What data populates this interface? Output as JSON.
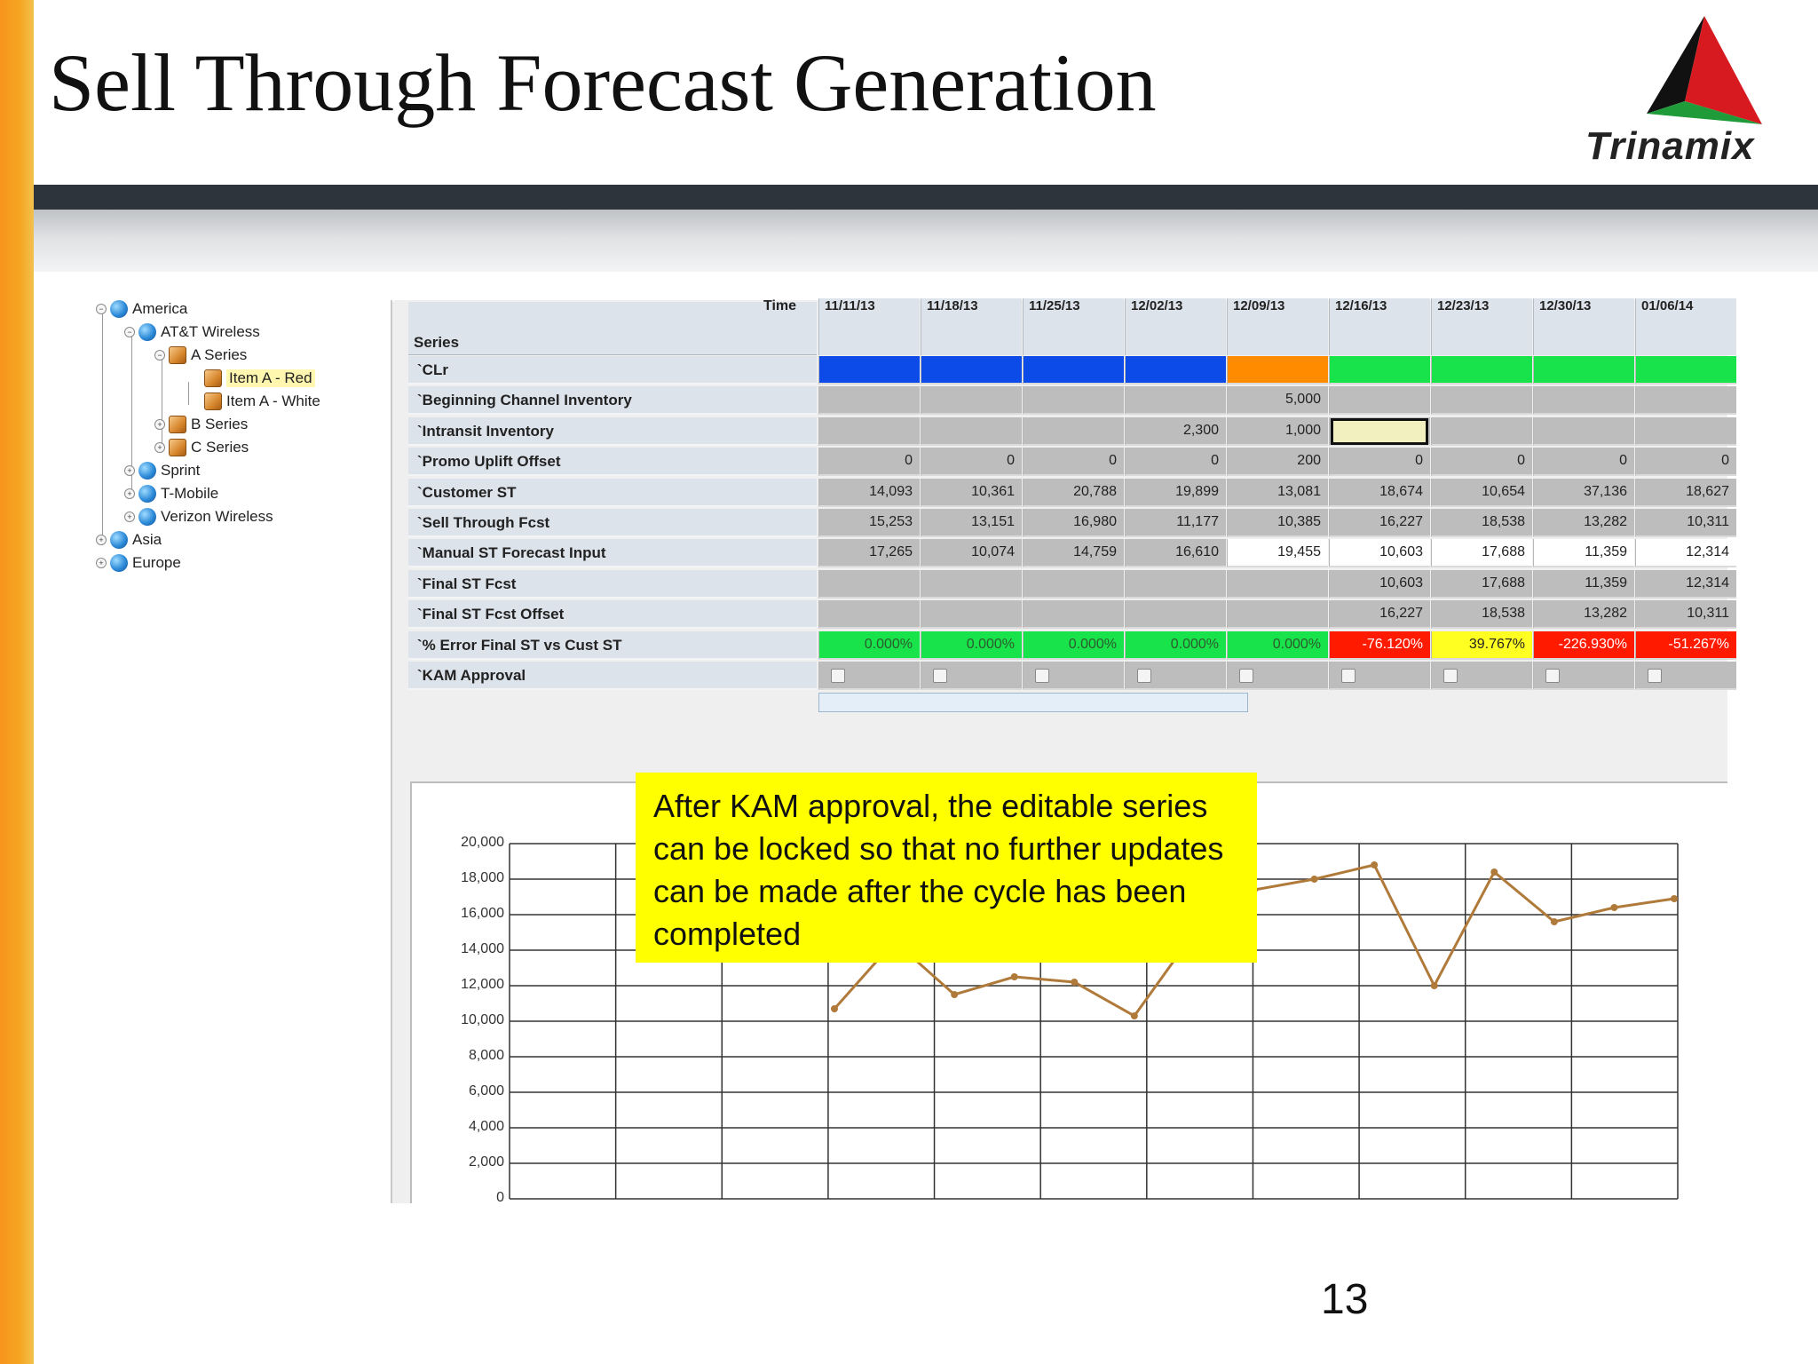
{
  "slide": {
    "title": "Sell Through Forecast Generation",
    "logo_text": "Trinamix",
    "page_number": "13",
    "callout": "After KAM approval, the editable series can be locked so that no further updates can be made after the cycle has been completed"
  },
  "tree": [
    {
      "label": "America",
      "level": 0,
      "icon": "globe-icon",
      "toggle": "expanded"
    },
    {
      "label": "AT&T Wireless",
      "level": 1,
      "icon": "globe-icon",
      "toggle": "expanded"
    },
    {
      "label": "A Series",
      "level": 2,
      "icon": "box-icon",
      "toggle": "expanded"
    },
    {
      "label": "Item A - Red",
      "level": 3,
      "icon": "box-icon",
      "selected": true
    },
    {
      "label": "Item A - White",
      "level": 3,
      "icon": "box-icon"
    },
    {
      "label": "B Series",
      "level": 2,
      "icon": "box-icon",
      "toggle": "collapsed"
    },
    {
      "label": "C Series",
      "level": 2,
      "icon": "box-icon",
      "toggle": "collapsed"
    },
    {
      "label": "Sprint",
      "level": 1,
      "icon": "globe-icon",
      "toggle": "collapsed"
    },
    {
      "label": "T-Mobile",
      "level": 1,
      "icon": "globe-icon",
      "toggle": "collapsed"
    },
    {
      "label": "Verizon Wireless",
      "level": 1,
      "icon": "globe-icon",
      "toggle": "collapsed"
    },
    {
      "label": "Asia",
      "level": 0,
      "icon": "globe-icon",
      "toggle": "collapsed"
    },
    {
      "label": "Europe",
      "level": 0,
      "icon": "globe-icon",
      "toggle": "collapsed"
    }
  ],
  "grid": {
    "time_label": "Time",
    "series_label": "Series",
    "dates": [
      "11/11/13",
      "11/18/13",
      "11/25/13",
      "12/02/13",
      "12/09/13",
      "12/16/13",
      "12/23/13",
      "12/30/13",
      "01/06/14"
    ],
    "rows": [
      {
        "label": "`CLr",
        "values": [
          "",
          "",
          "",
          "",
          "",
          "",
          "",
          "",
          ""
        ]
      },
      {
        "label": "`Beginning Channel Inventory",
        "values": [
          "",
          "",
          "",
          "",
          "5,000",
          "",
          "",
          "",
          ""
        ]
      },
      {
        "label": "`Intransit Inventory",
        "values": [
          "",
          "",
          "",
          "2,300",
          "1,000",
          "",
          "",
          "",
          ""
        ]
      },
      {
        "label": "`Promo Uplift Offset",
        "values": [
          "0",
          "0",
          "0",
          "0",
          "200",
          "0",
          "0",
          "0",
          "0"
        ]
      },
      {
        "label": "`Customer ST",
        "values": [
          "14,093",
          "10,361",
          "20,788",
          "19,899",
          "13,081",
          "18,674",
          "10,654",
          "37,136",
          "18,627"
        ]
      },
      {
        "label": "`Sell Through Fcst",
        "values": [
          "15,253",
          "13,151",
          "16,980",
          "11,177",
          "10,385",
          "16,227",
          "18,538",
          "13,282",
          "10,311"
        ]
      },
      {
        "label": "`Manual ST Forecast Input",
        "values": [
          "17,265",
          "10,074",
          "14,759",
          "16,610",
          "19,455",
          "10,603",
          "17,688",
          "11,359",
          "12,314"
        ]
      },
      {
        "label": "`Final ST Fcst",
        "values": [
          "",
          "",
          "",
          "",
          "",
          "10,603",
          "17,688",
          "11,359",
          "12,314"
        ]
      },
      {
        "label": "`Final ST Fcst Offset",
        "values": [
          "",
          "",
          "",
          "",
          "",
          "16,227",
          "18,538",
          "13,282",
          "10,311"
        ]
      },
      {
        "label": "`% Error Final ST vs Cust ST",
        "values": [
          "0.000%",
          "0.000%",
          "0.000%",
          "0.000%",
          "0.000%",
          "-76.120%",
          "39.767%",
          "-226.930%",
          "-51.267%"
        ]
      },
      {
        "label": "`KAM Approval",
        "values": [
          "",
          "",
          "",
          "",
          "",
          "",
          "",
          "",
          ""
        ]
      }
    ],
    "colors": {
      "clr_blue": "#0c4be8",
      "clr_orange": "#ff8c00",
      "clr_green": "#18e34b",
      "error_red": "#ff1a00",
      "error_yellow": "#ffff22"
    }
  },
  "chart_data": {
    "type": "line",
    "title": "",
    "xlabel": "",
    "ylabel": "",
    "ylim": [
      0,
      20000
    ],
    "yticks": [
      "0",
      "2,000",
      "4,000",
      "6,000",
      "8,000",
      "10,000",
      "12,000",
      "14,000",
      "16,000",
      "18,000",
      "20,000"
    ],
    "grid": true,
    "series": [
      {
        "values": [
          10700,
          14500,
          11500,
          12500,
          12200,
          10300,
          15000,
          17400,
          18000,
          18800,
          12000,
          18400,
          15600,
          16400,
          16900
        ]
      }
    ]
  }
}
